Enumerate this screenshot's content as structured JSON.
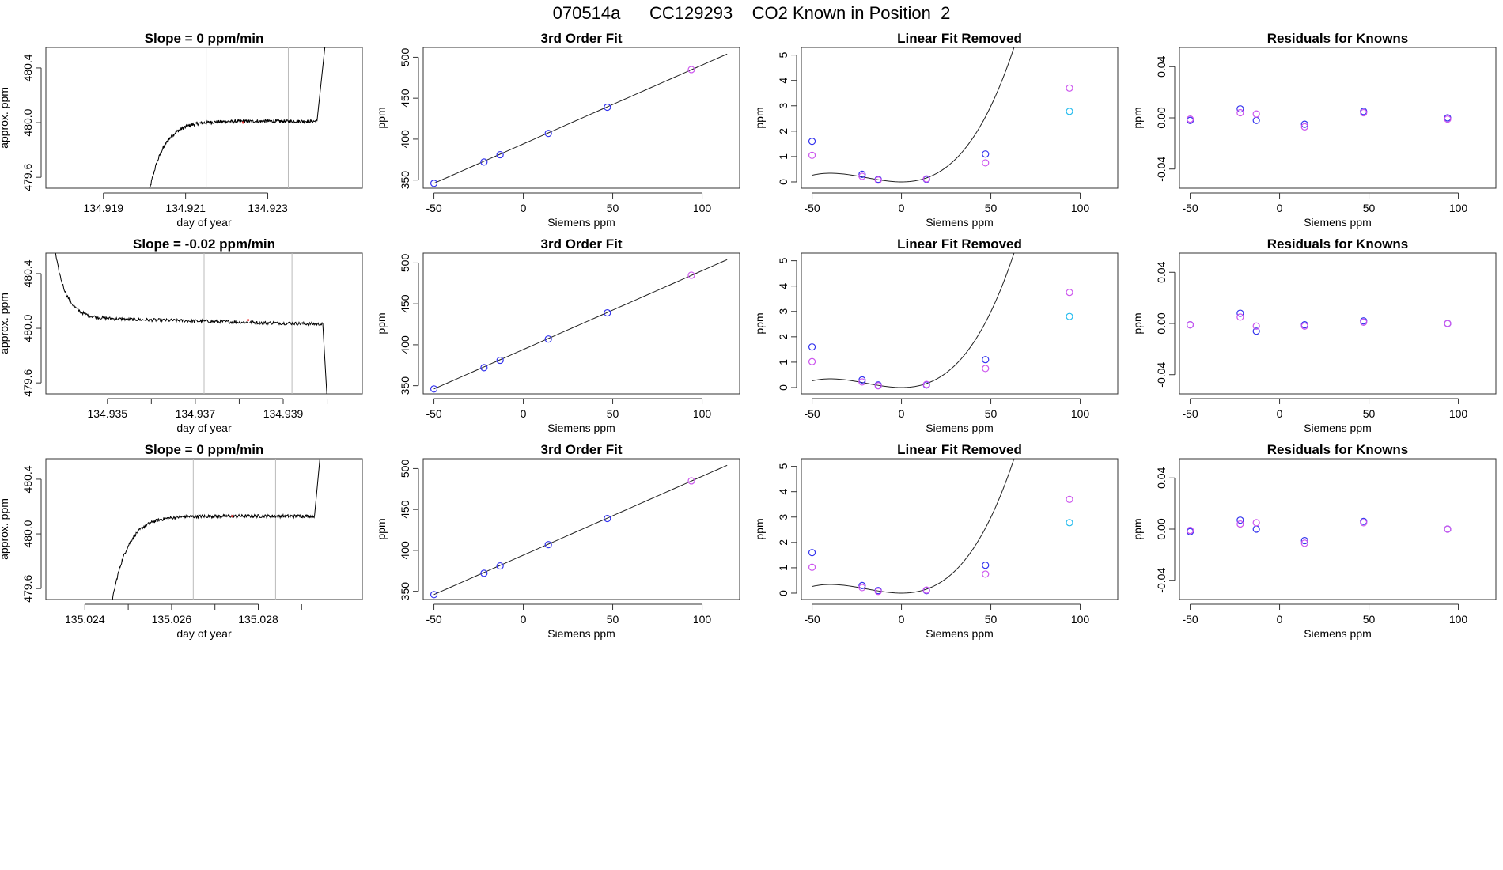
{
  "figure_title": "070514a      CC129293    CO2 Known in Position  2",
  "colors": {
    "trace": "#000000",
    "blue": "#3333ee",
    "magenta": "#cc55ee",
    "cyan": "#22bbee",
    "purple": "#7733dd",
    "window_line": "#bbbbbb"
  },
  "chart_data": [
    {
      "row": 0,
      "col": 0,
      "type": "line",
      "title": "Slope =  0  ppm/min",
      "xlabel": "day of year",
      "ylabel": "approx. ppm",
      "xlim": [
        134.9176,
        134.9253
      ],
      "ylim": [
        479.52,
        480.55
      ],
      "xticks": [
        134.919,
        134.921,
        134.923
      ],
      "xtick_labels": [
        "134.919",
        "134.921",
        "134.923"
      ],
      "yticks": [
        479.6,
        480.0,
        480.4
      ],
      "ytick_labels": [
        "479.6",
        "480.0",
        "480.4"
      ],
      "vlines": [
        134.9215,
        134.9235
      ],
      "trace": {
        "t_start": 134.9201,
        "t_jump": 134.9242,
        "t_end": 134.9246,
        "start": 479.47,
        "level": 480.01,
        "noise": 0.012,
        "rise_tau": 0.00035,
        "end_kind": "up"
      },
      "red_point": {
        "x": 134.9224,
        "y": 480.0
      }
    },
    {
      "row": 0,
      "col": 1,
      "type": "scatter",
      "title": "3rd Order Fit",
      "xlabel": "Siemens ppm",
      "ylabel": "ppm",
      "xlim": [
        -56,
        121
      ],
      "ylim": [
        340,
        512
      ],
      "xticks": [
        -50,
        0,
        50,
        100
      ],
      "yticks": [
        350,
        400,
        450,
        500
      ],
      "curve": {
        "x0": -50,
        "x1": 114,
        "y0": 346,
        "y1": 504
      },
      "points": [
        {
          "x": -50,
          "y": 346,
          "c": "blue"
        },
        {
          "x": -22,
          "y": 372,
          "c": "blue"
        },
        {
          "x": -13,
          "y": 381,
          "c": "blue"
        },
        {
          "x": 14,
          "y": 407,
          "c": "blue"
        },
        {
          "x": 47,
          "y": 439,
          "c": "blue"
        },
        {
          "x": 94,
          "y": 485,
          "c": "magenta"
        }
      ]
    },
    {
      "row": 0,
      "col": 2,
      "type": "scatter",
      "title": "Linear Fit Removed",
      "xlabel": "Siemens ppm",
      "ylabel": "ppm",
      "xlim": [
        -56,
        121
      ],
      "ylim": [
        -0.25,
        5.3
      ],
      "xticks": [
        -50,
        0,
        50,
        100
      ],
      "yticks": [
        0,
        1,
        2,
        3,
        4,
        5
      ],
      "curve": {
        "quad_a": 0.00065,
        "cubic_b": 1.09e-05,
        "x0": -50,
        "x1": 114
      },
      "points": [
        {
          "x": -50,
          "y": 1.6,
          "c": "blue"
        },
        {
          "x": -50,
          "y": 1.05,
          "c": "magenta"
        },
        {
          "x": -22,
          "y": 0.3,
          "c": "blue"
        },
        {
          "x": -22,
          "y": 0.22,
          "c": "magenta"
        },
        {
          "x": -13,
          "y": 0.1,
          "c": "blue"
        },
        {
          "x": -13,
          "y": 0.07,
          "c": "magenta"
        },
        {
          "x": 14,
          "y": 0.1,
          "c": "blue"
        },
        {
          "x": 14,
          "y": 0.12,
          "c": "magenta"
        },
        {
          "x": 47,
          "y": 1.1,
          "c": "blue"
        },
        {
          "x": 47,
          "y": 0.75,
          "c": "magenta"
        },
        {
          "x": 94,
          "y": 3.7,
          "c": "magenta"
        },
        {
          "x": 94,
          "y": 2.78,
          "c": "cyan"
        }
      ]
    },
    {
      "row": 0,
      "col": 3,
      "type": "scatter",
      "title": "Residuals for Knowns",
      "xlabel": "Siemens ppm",
      "ylabel": "ppm",
      "xlim": [
        -56,
        121
      ],
      "ylim": [
        -0.055,
        0.055
      ],
      "xticks": [
        -50,
        0,
        50,
        100
      ],
      "yticks": [
        -0.04,
        0.0,
        0.04
      ],
      "ytick_labels": [
        "-0.04",
        "0.00",
        "0.04"
      ],
      "points": [
        {
          "x": -50,
          "y": -0.002,
          "c": "blue"
        },
        {
          "x": -50,
          "y": -0.001,
          "c": "magenta"
        },
        {
          "x": -22,
          "y": 0.007,
          "c": "blue"
        },
        {
          "x": -22,
          "y": 0.004,
          "c": "magenta"
        },
        {
          "x": -13,
          "y": -0.002,
          "c": "blue"
        },
        {
          "x": -13,
          "y": 0.003,
          "c": "magenta"
        },
        {
          "x": 14,
          "y": -0.005,
          "c": "blue"
        },
        {
          "x": 14,
          "y": -0.007,
          "c": "magenta"
        },
        {
          "x": 47,
          "y": 0.005,
          "c": "blue"
        },
        {
          "x": 47,
          "y": 0.004,
          "c": "magenta"
        },
        {
          "x": 94,
          "y": 0.0,
          "c": "blue"
        },
        {
          "x": 94,
          "y": -0.001,
          "c": "magenta"
        }
      ]
    },
    {
      "row": 1,
      "col": 0,
      "type": "line",
      "title": "Slope =  -0.02  ppm/min",
      "xlabel": "day of year",
      "ylabel": "approx. ppm",
      "xlim": [
        134.9336,
        134.9408
      ],
      "ylim": [
        479.52,
        480.55
      ],
      "xticks": [
        134.935,
        134.937,
        134.939
      ],
      "xtick_labels": [
        "134.935",
        "134.937",
        "134.939"
      ],
      "extra_xticks": [
        134.936,
        134.938,
        134.94
      ],
      "yticks": [
        479.6,
        480.0,
        480.4
      ],
      "ytick_labels": [
        "479.6",
        "480.0",
        "480.4"
      ],
      "vlines": [
        134.9372,
        134.9392
      ],
      "trace": {
        "t_start": 134.9336,
        "t_jump": 134.9399,
        "t_end": 134.9401,
        "start": 481.2,
        "level": 480.08,
        "level_end": 480.03,
        "noise": 0.012,
        "rise_tau": 0.00025,
        "end_kind": "down"
      },
      "red_point": {
        "x": 134.9382,
        "y": 480.06
      }
    },
    {
      "row": 1,
      "col": 1,
      "type": "scatter",
      "title": "3rd Order Fit",
      "xlabel": "Siemens ppm",
      "ylabel": "ppm",
      "xlim": [
        -56,
        121
      ],
      "ylim": [
        340,
        512
      ],
      "xticks": [
        -50,
        0,
        50,
        100
      ],
      "yticks": [
        350,
        400,
        450,
        500
      ],
      "curve": {
        "x0": -50,
        "x1": 114,
        "y0": 346,
        "y1": 504
      },
      "points": [
        {
          "x": -50,
          "y": 346,
          "c": "blue"
        },
        {
          "x": -22,
          "y": 372,
          "c": "blue"
        },
        {
          "x": -13,
          "y": 381,
          "c": "blue"
        },
        {
          "x": 14,
          "y": 407,
          "c": "blue"
        },
        {
          "x": 47,
          "y": 439,
          "c": "blue"
        },
        {
          "x": 94,
          "y": 485,
          "c": "magenta"
        }
      ]
    },
    {
      "row": 1,
      "col": 2,
      "type": "scatter",
      "title": "Linear Fit Removed",
      "xlabel": "Siemens ppm",
      "ylabel": "ppm",
      "xlim": [
        -56,
        121
      ],
      "ylim": [
        -0.25,
        5.3
      ],
      "xticks": [
        -50,
        0,
        50,
        100
      ],
      "yticks": [
        0,
        1,
        2,
        3,
        4,
        5
      ],
      "curve": {
        "quad_a": 0.00065,
        "cubic_b": 1.09e-05,
        "x0": -50,
        "x1": 114
      },
      "points": [
        {
          "x": -50,
          "y": 1.6,
          "c": "blue"
        },
        {
          "x": -50,
          "y": 1.02,
          "c": "magenta"
        },
        {
          "x": -22,
          "y": 0.3,
          "c": "blue"
        },
        {
          "x": -22,
          "y": 0.22,
          "c": "magenta"
        },
        {
          "x": -13,
          "y": 0.1,
          "c": "blue"
        },
        {
          "x": -13,
          "y": 0.07,
          "c": "magenta"
        },
        {
          "x": 14,
          "y": 0.1,
          "c": "blue"
        },
        {
          "x": 14,
          "y": 0.12,
          "c": "magenta"
        },
        {
          "x": 47,
          "y": 1.1,
          "c": "blue"
        },
        {
          "x": 47,
          "y": 0.75,
          "c": "magenta"
        },
        {
          "x": 94,
          "y": 3.75,
          "c": "magenta"
        },
        {
          "x": 94,
          "y": 2.8,
          "c": "cyan"
        }
      ]
    },
    {
      "row": 1,
      "col": 3,
      "type": "scatter",
      "title": "Residuals for Knowns",
      "xlabel": "Siemens ppm",
      "ylabel": "ppm",
      "xlim": [
        -56,
        121
      ],
      "ylim": [
        -0.055,
        0.055
      ],
      "xticks": [
        -50,
        0,
        50,
        100
      ],
      "yticks": [
        -0.04,
        0.0,
        0.04
      ],
      "ytick_labels": [
        "-0.04",
        "0.00",
        "0.04"
      ],
      "points": [
        {
          "x": -50,
          "y": -0.001,
          "c": "blue"
        },
        {
          "x": -50,
          "y": -0.001,
          "c": "magenta"
        },
        {
          "x": -22,
          "y": 0.008,
          "c": "blue"
        },
        {
          "x": -22,
          "y": 0.005,
          "c": "magenta"
        },
        {
          "x": -13,
          "y": -0.006,
          "c": "blue"
        },
        {
          "x": -13,
          "y": -0.002,
          "c": "magenta"
        },
        {
          "x": 14,
          "y": -0.001,
          "c": "blue"
        },
        {
          "x": 14,
          "y": -0.002,
          "c": "magenta"
        },
        {
          "x": 47,
          "y": 0.002,
          "c": "blue"
        },
        {
          "x": 47,
          "y": 0.001,
          "c": "magenta"
        },
        {
          "x": 94,
          "y": 0.0,
          "c": "blue"
        },
        {
          "x": 94,
          "y": 0.0,
          "c": "magenta"
        }
      ]
    },
    {
      "row": 2,
      "col": 0,
      "type": "line",
      "title": "Slope =  0  ppm/min",
      "xlabel": "day of year",
      "ylabel": "approx. ppm",
      "xlim": [
        135.0231,
        135.0304
      ],
      "ylim": [
        479.52,
        480.55
      ],
      "xticks": [
        135.024,
        135.026,
        135.028
      ],
      "xtick_labels": [
        "135.024",
        "135.026",
        "135.028"
      ],
      "extra_xticks": [
        135.025,
        135.027,
        135.029
      ],
      "yticks": [
        479.6,
        480.0,
        480.4
      ],
      "ytick_labels": [
        "479.6",
        "480.0",
        "480.4"
      ],
      "vlines": [
        135.0265,
        135.0284
      ],
      "trace": {
        "t_start": 135.0246,
        "t_jump": 135.0293,
        "t_end": 135.0296,
        "start": 479.45,
        "level": 480.13,
        "noise": 0.012,
        "rise_tau": 0.00035,
        "end_kind": "up"
      },
      "red_point": {
        "x": 135.0274,
        "y": 480.13
      }
    },
    {
      "row": 2,
      "col": 1,
      "type": "scatter",
      "title": "3rd Order Fit",
      "xlabel": "Siemens ppm",
      "ylabel": "ppm",
      "xlim": [
        -56,
        121
      ],
      "ylim": [
        340,
        512
      ],
      "xticks": [
        -50,
        0,
        50,
        100
      ],
      "yticks": [
        350,
        400,
        450,
        500
      ],
      "curve": {
        "x0": -50,
        "x1": 114,
        "y0": 346,
        "y1": 504
      },
      "points": [
        {
          "x": -50,
          "y": 346,
          "c": "blue"
        },
        {
          "x": -22,
          "y": 372,
          "c": "blue"
        },
        {
          "x": -13,
          "y": 381,
          "c": "blue"
        },
        {
          "x": 14,
          "y": 407,
          "c": "blue"
        },
        {
          "x": 47,
          "y": 439,
          "c": "blue"
        },
        {
          "x": 94,
          "y": 485,
          "c": "magenta"
        }
      ]
    },
    {
      "row": 2,
      "col": 2,
      "type": "scatter",
      "title": "Linear Fit Removed",
      "xlabel": "Siemens ppm",
      "ylabel": "ppm",
      "xlim": [
        -56,
        121
      ],
      "ylim": [
        -0.25,
        5.3
      ],
      "xticks": [
        -50,
        0,
        50,
        100
      ],
      "yticks": [
        0,
        1,
        2,
        3,
        4,
        5
      ],
      "curve": {
        "quad_a": 0.00065,
        "cubic_b": 1.09e-05,
        "x0": -50,
        "x1": 114
      },
      "points": [
        {
          "x": -50,
          "y": 1.6,
          "c": "blue"
        },
        {
          "x": -50,
          "y": 1.02,
          "c": "magenta"
        },
        {
          "x": -22,
          "y": 0.3,
          "c": "blue"
        },
        {
          "x": -22,
          "y": 0.22,
          "c": "magenta"
        },
        {
          "x": -13,
          "y": 0.1,
          "c": "blue"
        },
        {
          "x": -13,
          "y": 0.07,
          "c": "magenta"
        },
        {
          "x": 14,
          "y": 0.1,
          "c": "blue"
        },
        {
          "x": 14,
          "y": 0.12,
          "c": "magenta"
        },
        {
          "x": 47,
          "y": 1.1,
          "c": "blue"
        },
        {
          "x": 47,
          "y": 0.75,
          "c": "magenta"
        },
        {
          "x": 94,
          "y": 3.7,
          "c": "magenta"
        },
        {
          "x": 94,
          "y": 2.78,
          "c": "cyan"
        }
      ]
    },
    {
      "row": 2,
      "col": 3,
      "type": "scatter",
      "title": "Residuals for Knowns",
      "xlabel": "Siemens ppm",
      "ylabel": "ppm",
      "xlim": [
        -56,
        121
      ],
      "ylim": [
        -0.055,
        0.055
      ],
      "xticks": [
        -50,
        0,
        50,
        100
      ],
      "yticks": [
        -0.04,
        0.0,
        0.04
      ],
      "ytick_labels": [
        "-0.04",
        "0.00",
        "0.04"
      ],
      "points": [
        {
          "x": -50,
          "y": -0.002,
          "c": "blue"
        },
        {
          "x": -50,
          "y": -0.001,
          "c": "magenta"
        },
        {
          "x": -22,
          "y": 0.007,
          "c": "blue"
        },
        {
          "x": -22,
          "y": 0.004,
          "c": "magenta"
        },
        {
          "x": -13,
          "y": 0.0,
          "c": "blue"
        },
        {
          "x": -13,
          "y": 0.005,
          "c": "magenta"
        },
        {
          "x": 14,
          "y": -0.009,
          "c": "blue"
        },
        {
          "x": 14,
          "y": -0.011,
          "c": "magenta"
        },
        {
          "x": 47,
          "y": 0.006,
          "c": "blue"
        },
        {
          "x": 47,
          "y": 0.005,
          "c": "magenta"
        },
        {
          "x": 94,
          "y": 0.0,
          "c": "blue"
        },
        {
          "x": 94,
          "y": 0.0,
          "c": "magenta"
        }
      ]
    }
  ]
}
